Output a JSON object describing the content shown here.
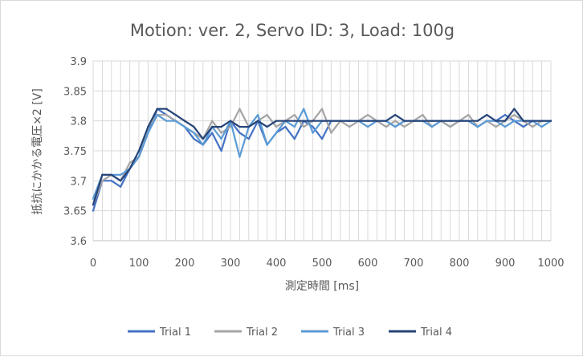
{
  "chart_data": {
    "type": "line",
    "title": "Motion: ver. 2, Servo ID: 3, Load: 100g",
    "xlabel": "測定時間 [ms]",
    "ylabel": "抵抗にかかる電圧×2 [V]",
    "xlim": [
      0,
      1000
    ],
    "ylim": [
      3.6,
      3.9
    ],
    "x_ticks": [
      "0",
      "100",
      "200",
      "300",
      "400",
      "500",
      "600",
      "700",
      "800",
      "900",
      "1000"
    ],
    "y_ticks": [
      "3.6",
      "3.65",
      "3.7",
      "3.75",
      "3.8",
      "3.85",
      "3.9"
    ],
    "grid": "vertical and horizontal",
    "legend_position": "bottom",
    "x": [
      0,
      20,
      40,
      60,
      80,
      100,
      120,
      140,
      160,
      180,
      200,
      220,
      240,
      260,
      280,
      300,
      320,
      340,
      360,
      380,
      400,
      420,
      440,
      460,
      480,
      500,
      520,
      540,
      560,
      580,
      600,
      620,
      640,
      660,
      680,
      700,
      720,
      740,
      760,
      780,
      800,
      820,
      840,
      860,
      880,
      900,
      920,
      940,
      960,
      980,
      1000
    ],
    "series": [
      {
        "name": "Trial 1",
        "color": "#4472c4",
        "values": [
          3.65,
          3.7,
          3.7,
          3.69,
          3.72,
          3.74,
          3.78,
          3.82,
          3.81,
          3.8,
          3.79,
          3.77,
          3.76,
          3.78,
          3.75,
          3.8,
          3.78,
          3.77,
          3.8,
          3.76,
          3.78,
          3.79,
          3.77,
          3.8,
          3.79,
          3.77,
          3.8,
          3.8,
          3.8,
          3.8,
          3.8,
          3.8,
          3.8,
          3.79,
          3.8,
          3.8,
          3.8,
          3.8,
          3.8,
          3.79,
          3.8,
          3.8,
          3.79,
          3.8,
          3.8,
          3.81,
          3.8,
          3.79,
          3.8,
          3.8,
          3.8
        ]
      },
      {
        "name": "Trial 2",
        "color": "#a5a5a5",
        "values": [
          3.66,
          3.7,
          3.71,
          3.7,
          3.73,
          3.74,
          3.79,
          3.81,
          3.81,
          3.8,
          3.79,
          3.78,
          3.77,
          3.8,
          3.78,
          3.79,
          3.82,
          3.79,
          3.8,
          3.81,
          3.79,
          3.8,
          3.81,
          3.79,
          3.8,
          3.82,
          3.78,
          3.8,
          3.79,
          3.8,
          3.81,
          3.8,
          3.79,
          3.8,
          3.79,
          3.8,
          3.81,
          3.79,
          3.8,
          3.79,
          3.8,
          3.81,
          3.79,
          3.8,
          3.79,
          3.8,
          3.81,
          3.8,
          3.79,
          3.8,
          3.8
        ]
      },
      {
        "name": "Trial 3",
        "color": "#5b9bd5",
        "values": [
          3.67,
          3.71,
          3.71,
          3.71,
          3.72,
          3.74,
          3.78,
          3.81,
          3.8,
          3.8,
          3.79,
          3.78,
          3.76,
          3.79,
          3.77,
          3.8,
          3.74,
          3.79,
          3.81,
          3.76,
          3.78,
          3.8,
          3.79,
          3.82,
          3.78,
          3.8,
          3.8,
          3.8,
          3.8,
          3.8,
          3.79,
          3.8,
          3.8,
          3.79,
          3.8,
          3.8,
          3.8,
          3.79,
          3.8,
          3.8,
          3.8,
          3.8,
          3.79,
          3.8,
          3.8,
          3.79,
          3.8,
          3.8,
          3.8,
          3.79,
          3.8
        ]
      },
      {
        "name": "Trial 4",
        "color": "#264478",
        "values": [
          3.66,
          3.71,
          3.71,
          3.7,
          3.72,
          3.75,
          3.79,
          3.82,
          3.82,
          3.81,
          3.8,
          3.79,
          3.77,
          3.79,
          3.79,
          3.8,
          3.79,
          3.79,
          3.8,
          3.79,
          3.8,
          3.8,
          3.8,
          3.8,
          3.8,
          3.8,
          3.8,
          3.8,
          3.8,
          3.8,
          3.8,
          3.8,
          3.8,
          3.81,
          3.8,
          3.8,
          3.8,
          3.8,
          3.8,
          3.8,
          3.8,
          3.8,
          3.8,
          3.81,
          3.8,
          3.8,
          3.82,
          3.8,
          3.8,
          3.8,
          3.8
        ]
      }
    ]
  }
}
